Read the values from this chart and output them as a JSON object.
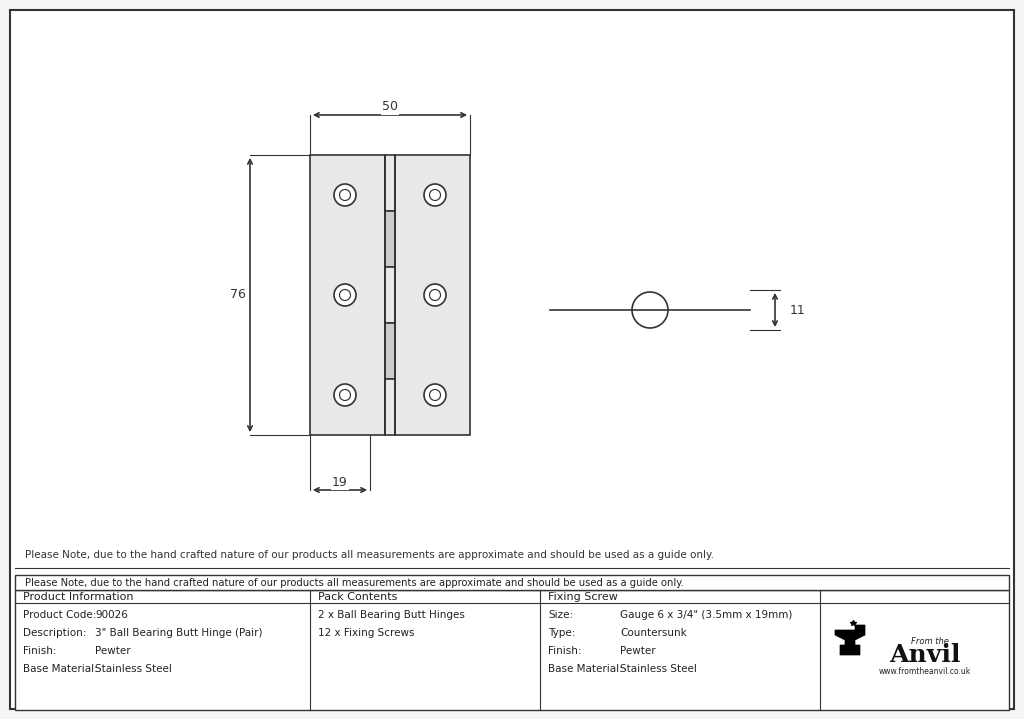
{
  "bg_color": "#f5f5f5",
  "drawing_bg": "#ffffff",
  "border_color": "#333333",
  "line_color": "#333333",
  "note_text": "Please Note, due to the hand crafted nature of our products all measurements are approximate and should be used as a guide only.",
  "table_data": {
    "col1_header": "Product Information",
    "col1_rows": [
      [
        "Product Code:",
        "90026"
      ],
      [
        "Description:",
        "3\" Ball Bearing Butt Hinge (Pair)"
      ],
      [
        "Finish:",
        "Pewter"
      ],
      [
        "Base Material:",
        "Stainless Steel"
      ]
    ],
    "col2_header": "Pack Contents",
    "col2_rows": [
      "2 x Ball Bearing Butt Hinges",
      "12 x Fixing Screws"
    ],
    "col3_header": "Fixing Screw",
    "col3_rows": [
      [
        "Size:",
        "Gauge 6 x 3/4\" (3.5mm x 19mm)"
      ],
      [
        "Type:",
        "Countersunk"
      ],
      [
        "Finish:",
        "Pewter"
      ],
      [
        "Base Material:",
        "Stainless Steel"
      ]
    ]
  },
  "dim_50": "50",
  "dim_76": "76",
  "dim_19": "19",
  "dim_11": "11",
  "hinge_color": "#e8e8e8",
  "hinge_outline": "#333333"
}
